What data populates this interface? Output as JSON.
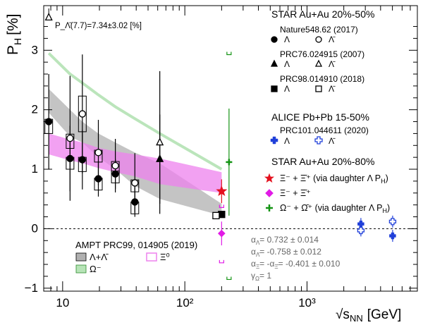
{
  "chart_data": {
    "type": "scatter",
    "ylabel": "P",
    "ylabel_sub": "H",
    "ylabel_unit": "[%]",
    "xlabel": "√s",
    "xlabel_sub": "NN",
    "xlabel_unit": "[GeV]",
    "xscale": "log",
    "xlim": [
      7.0,
      8000
    ],
    "ylim": [
      -1.05,
      3.75
    ],
    "xticks": [
      {
        "v": 10,
        "label": "10"
      },
      {
        "v": 100,
        "label": "10²"
      },
      {
        "v": 1000,
        "label": "10³"
      }
    ],
    "yticks": [
      {
        "v": -1,
        "label": "−1"
      },
      {
        "v": 0,
        "label": "0"
      },
      {
        "v": 1,
        "label": "1"
      },
      {
        "v": 2,
        "label": "2"
      },
      {
        "v": 3,
        "label": "3"
      }
    ],
    "top_note": "P_Λ̄(7.7)=7.34±3.02 [%]",
    "bands": [
      {
        "name": "Λ+Λ̄",
        "color": "#b0b0b0",
        "x": [
          7.7,
          11.5,
          14.5,
          19.6,
          27,
          39,
          62.4,
          200
        ],
        "lower": [
          1.95,
          1.55,
          1.45,
          1.2,
          1.0,
          0.72,
          0.5,
          0.22
        ],
        "upper": [
          2.35,
          2.0,
          1.8,
          1.6,
          1.45,
          1.28,
          1.1,
          0.42
        ]
      },
      {
        "name": "Ξ⁰",
        "color": "#ee82ee",
        "x": [
          7.7,
          11.5,
          14.5,
          19.6,
          27,
          39,
          62.4,
          200
        ],
        "lower": [
          1.25,
          1.15,
          1.1,
          1.02,
          0.95,
          0.88,
          0.75,
          0.6
        ],
        "upper": [
          1.6,
          1.5,
          1.45,
          1.36,
          1.3,
          1.25,
          1.18,
          0.95
        ]
      },
      {
        "name": "Ω⁻",
        "color": "#b7e4b7",
        "x": [
          7.7,
          11.5,
          14.5,
          19.6,
          27,
          39,
          62.4,
          200
        ],
        "center": [
          2.95,
          2.6,
          2.45,
          2.25,
          2.05,
          1.85,
          1.6,
          1.0
        ]
      }
    ],
    "series": [
      {
        "name": "Λ",
        "group": "Nature548.62 (2017)",
        "marker": "circle",
        "filled": true,
        "color": "#000000",
        "points": [
          {
            "x": 7.7,
            "y": 1.8,
            "err": 0.8
          },
          {
            "x": 11.5,
            "y": 1.18,
            "err": 0.55
          },
          {
            "x": 14.5,
            "y": 1.16,
            "err": 0.5
          },
          {
            "x": 19.6,
            "y": 0.84,
            "err": 0.3
          },
          {
            "x": 27,
            "y": 0.92,
            "err": 0.25
          },
          {
            "x": 39,
            "y": 0.45,
            "err": 0.25
          }
        ]
      },
      {
        "name": "Λ̄",
        "group": "Nature548.62 (2017)",
        "marker": "circle",
        "filled": false,
        "color": "#000000",
        "points": [
          {
            "x": 11.5,
            "y": 1.52,
            "err": 1.05
          },
          {
            "x": 14.5,
            "y": 1.93,
            "err": 1.0
          },
          {
            "x": 19.6,
            "y": 1.28,
            "err": 0.55
          },
          {
            "x": 27,
            "y": 1.06,
            "err": 0.45
          },
          {
            "x": 39,
            "y": 0.77,
            "err": 0.5
          }
        ]
      },
      {
        "name": "Λ",
        "group": "PRC76.024915 (2007)",
        "marker": "triangle",
        "filled": true,
        "color": "#000000",
        "points": [
          {
            "x": 62.4,
            "y": 1.17,
            "err": 0.75
          }
        ]
      },
      {
        "name": "Λ̄",
        "group": "PRC76.024915 (2007)",
        "marker": "triangle",
        "filled": false,
        "color": "#000000",
        "points": [
          {
            "x": 62.4,
            "y": 1.45,
            "err": 1.2
          },
          {
            "x": 7.7,
            "y": 3.55,
            "err": 0
          }
        ]
      },
      {
        "name": "Λ",
        "group": "PRC98.014910 (2018)",
        "marker": "square",
        "filled": true,
        "color": "#000000",
        "points": [
          {
            "x": 200,
            "y": 0.24,
            "err": 0.03
          }
        ]
      },
      {
        "name": "Λ̄",
        "group": "PRC98.014910 (2018)",
        "marker": "square",
        "filled": false,
        "color": "#000000",
        "points": [
          {
            "x": 180,
            "y": 0.22,
            "err": 0.03
          }
        ]
      },
      {
        "name": "Λ",
        "group": "PRC101.044611 (2020)",
        "marker": "cross",
        "filled": true,
        "color": "#1f3fd9",
        "points": [
          {
            "x": 2760,
            "y": 0.08,
            "err": 0.1
          },
          {
            "x": 5020,
            "y": -0.12,
            "err": 0.1
          }
        ]
      },
      {
        "name": "Λ̄",
        "group": "PRC101.044611 (2020)",
        "marker": "cross",
        "filled": false,
        "color": "#1f3fd9",
        "points": [
          {
            "x": 2760,
            "y": -0.03,
            "err": 0.1
          },
          {
            "x": 5020,
            "y": 0.12,
            "err": 0.1
          }
        ]
      },
      {
        "name": "Ξ⁻ + Ξ̄⁺",
        "group": "STAR Au+Au 20%-80%",
        "marker": "star",
        "filled": true,
        "color": "#e4111e",
        "points": [
          {
            "x": 200,
            "y": 0.63,
            "err": 0.2
          }
        ]
      },
      {
        "name": "Ξ⁻ + Ξ̄⁺",
        "group": "STAR Au+Au 20%-80%",
        "marker": "diamond",
        "filled": true,
        "color": "#e11be6",
        "points": [
          {
            "x": 200,
            "y": -0.08,
            "err": 0.2
          }
        ]
      },
      {
        "name": "Ω⁻ + Ω̄⁺",
        "group": "STAR Au+Au 20%-80%",
        "marker": "plus",
        "filled": true,
        "color": "#149414",
        "points": [
          {
            "x": 230,
            "y": 1.12,
            "err": 0.9
          }
        ]
      }
    ],
    "sys_boxes_star": [
      {
        "x": 7.7,
        "y": 1.72,
        "hw": 0.12
      },
      {
        "x": 11.5,
        "y": 1.1,
        "hw": 0.1
      },
      {
        "x": 11.5,
        "y": 1.47,
        "hw": 0.12
      },
      {
        "x": 14.5,
        "y": 1.08,
        "hw": 0.12
      },
      {
        "x": 14.5,
        "y": 1.93,
        "hw": 0.3
      },
      {
        "x": 19.6,
        "y": 0.75,
        "hw": 0.1
      },
      {
        "x": 19.6,
        "y": 1.22,
        "hw": 0.1
      },
      {
        "x": 27,
        "y": 0.87,
        "hw": 0.1
      },
      {
        "x": 27,
        "y": 1.03,
        "hw": 0.1
      },
      {
        "x": 39,
        "y": 0.35,
        "hw": 0.1
      },
      {
        "x": 39,
        "y": 0.72,
        "hw": 0.1
      }
    ],
    "legends": {
      "star": {
        "title": "STAR Au+Au 20%-50%",
        "groups": [
          {
            "ref": "Nature548.62 (2017)",
            "a": "Λ",
            "b": "Λ̄"
          },
          {
            "ref": "PRC76.024915 (2007)",
            "a": "Λ",
            "b": "Λ̄"
          },
          {
            "ref": "PRC98.014910 (2018)",
            "a": "Λ",
            "b": "Λ̄"
          }
        ]
      },
      "alice": {
        "title": "ALICE Pb+Pb 15-50%",
        "ref": "PRC101.044611 (2020)",
        "a": "Λ",
        "b": "Λ̄"
      },
      "star80": {
        "title": "STAR Au+Au 20%-80%",
        "items": [
          "Ξ⁻ + Ξ̄⁺ (via daughter Λ P",
          "Ξ⁻ + Ξ̄⁺",
          "Ω⁻ + Ω̄⁺ (via daughter Λ P"
        ],
        "item_suffix_sub": "H",
        "item_suffix_end": ")"
      },
      "ampt": {
        "title": "AMPT PRC99, 014905 (2019)",
        "items": [
          "Λ+Λ̄",
          "Ξ⁰",
          "Ω⁻"
        ]
      }
    },
    "constants": [
      "α",
      "Λ",
      "= 0.732 ± 0.014",
      "Λ̄",
      "= -0.758 ± 0.012",
      "Ξ",
      "= -α",
      "Ξ̄",
      "= -0.401 ± 0.010",
      "γ",
      "Ω",
      "= 1"
    ]
  }
}
